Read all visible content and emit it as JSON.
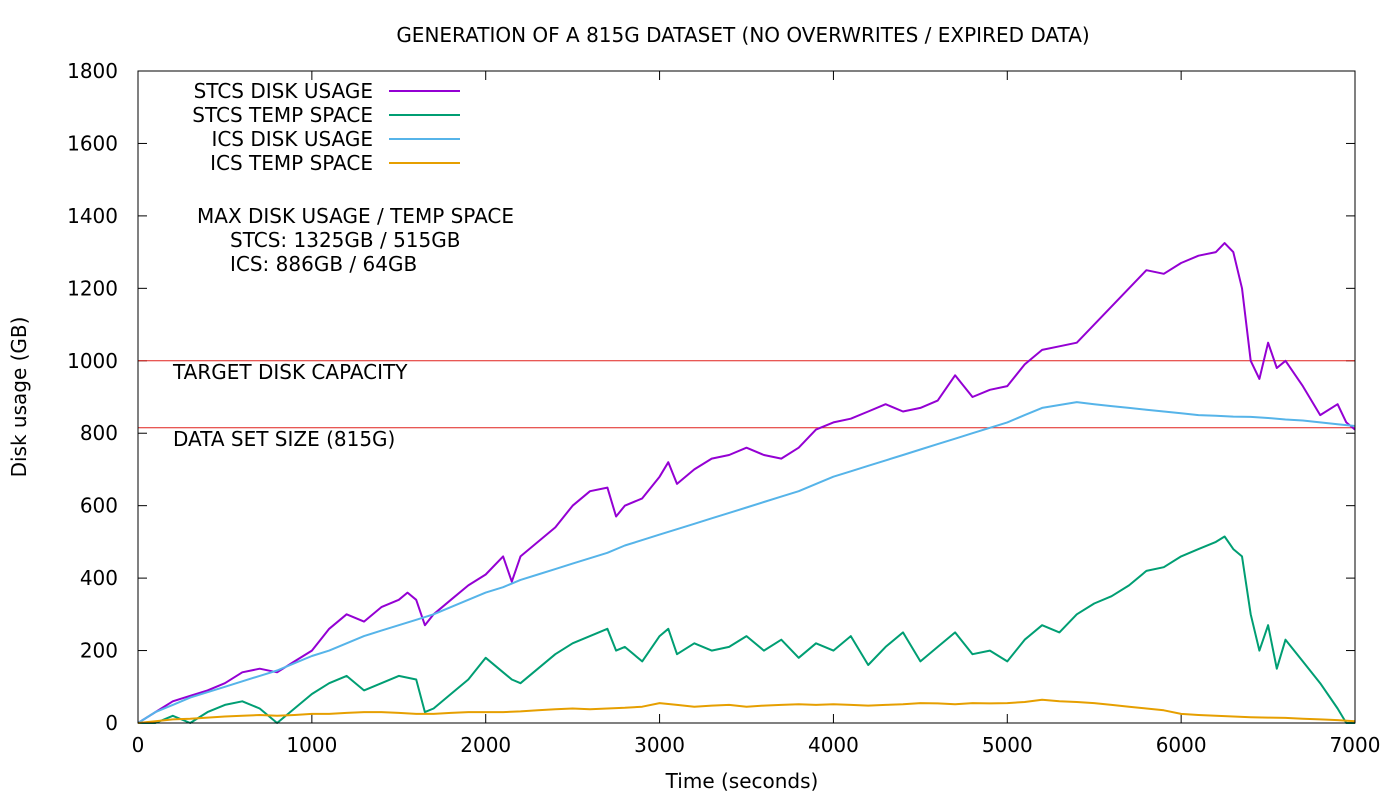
{
  "chart_data": {
    "type": "line",
    "title": "GENERATION OF A 815G DATASET (NO OVERWRITES / EXPIRED DATA)",
    "xlabel": "Time (seconds)",
    "ylabel": "Disk usage (GB)",
    "xlim": [
      0,
      7000
    ],
    "ylim": [
      0,
      1800
    ],
    "xticks": [
      "0",
      "1000",
      "2000",
      "3000",
      "4000",
      "5000",
      "6000",
      "7000"
    ],
    "yticks": [
      "0",
      "200",
      "400",
      "600",
      "800",
      "1000",
      "1200",
      "1400",
      "1600",
      "1800"
    ],
    "grid": false,
    "legend_position": "top-left",
    "reference_lines": [
      {
        "y": 1000,
        "label": "TARGET DISK CAPACITY",
        "color": "#e0201b"
      },
      {
        "y": 815,
        "label": "DATA SET SIZE (815G)",
        "color": "#e0201b"
      }
    ],
    "annotation": {
      "line1": "MAX DISK USAGE / TEMP SPACE",
      "line2": "STCS: 1325GB / 515GB",
      "line3": "ICS: 886GB / 64GB"
    },
    "series": [
      {
        "name": "STCS DISK USAGE",
        "color": "#9400d3",
        "x": [
          0,
          100,
          200,
          300,
          400,
          500,
          600,
          700,
          800,
          900,
          1000,
          1100,
          1200,
          1300,
          1400,
          1500,
          1550,
          1600,
          1650,
          1700,
          1800,
          1900,
          2000,
          2100,
          2150,
          2200,
          2300,
          2400,
          2500,
          2600,
          2700,
          2750,
          2800,
          2900,
          3000,
          3050,
          3100,
          3200,
          3300,
          3400,
          3500,
          3600,
          3700,
          3800,
          3900,
          4000,
          4100,
          4200,
          4300,
          4400,
          4500,
          4600,
          4700,
          4800,
          4900,
          5000,
          5100,
          5200,
          5300,
          5400,
          5500,
          5600,
          5700,
          5800,
          5900,
          6000,
          6100,
          6200,
          6250,
          6300,
          6350,
          6400,
          6450,
          6500,
          6550,
          6600,
          6700,
          6800,
          6900,
          6950,
          7000
        ],
        "y": [
          0,
          30,
          60,
          75,
          90,
          110,
          140,
          150,
          140,
          170,
          200,
          260,
          300,
          280,
          320,
          340,
          360,
          340,
          270,
          300,
          340,
          380,
          410,
          460,
          390,
          460,
          500,
          540,
          600,
          640,
          650,
          570,
          600,
          620,
          680,
          720,
          660,
          700,
          730,
          740,
          760,
          740,
          730,
          760,
          810,
          830,
          840,
          860,
          880,
          860,
          870,
          890,
          960,
          900,
          920,
          930,
          990,
          1030,
          1040,
          1050,
          1100,
          1150,
          1200,
          1250,
          1240,
          1270,
          1290,
          1300,
          1325,
          1300,
          1200,
          1000,
          950,
          1050,
          980,
          1000,
          930,
          850,
          880,
          830,
          810
        ]
      },
      {
        "name": "STCS TEMP SPACE",
        "color": "#009e73",
        "x": [
          0,
          100,
          200,
          300,
          400,
          500,
          600,
          700,
          800,
          900,
          1000,
          1100,
          1200,
          1300,
          1400,
          1500,
          1600,
          1650,
          1700,
          1800,
          1900,
          2000,
          2100,
          2150,
          2200,
          2300,
          2400,
          2500,
          2600,
          2700,
          2750,
          2800,
          2900,
          3000,
          3050,
          3100,
          3200,
          3300,
          3400,
          3500,
          3600,
          3700,
          3800,
          3900,
          4000,
          4100,
          4200,
          4300,
          4400,
          4500,
          4600,
          4700,
          4800,
          4900,
          5000,
          5100,
          5200,
          5300,
          5400,
          5500,
          5600,
          5700,
          5800,
          5900,
          6000,
          6100,
          6200,
          6250,
          6300,
          6350,
          6400,
          6450,
          6500,
          6550,
          6600,
          6700,
          6800,
          6900,
          6950,
          7000
        ],
        "y": [
          0,
          0,
          20,
          0,
          30,
          50,
          60,
          40,
          0,
          40,
          80,
          110,
          130,
          90,
          110,
          130,
          120,
          30,
          40,
          80,
          120,
          180,
          140,
          120,
          110,
          150,
          190,
          220,
          240,
          260,
          200,
          210,
          170,
          240,
          260,
          190,
          220,
          200,
          210,
          240,
          200,
          230,
          180,
          220,
          200,
          240,
          160,
          210,
          250,
          170,
          210,
          250,
          190,
          200,
          170,
          230,
          270,
          250,
          300,
          330,
          350,
          380,
          420,
          430,
          460,
          480,
          500,
          515,
          480,
          460,
          300,
          200,
          270,
          150,
          230,
          170,
          110,
          40,
          0,
          0
        ]
      },
      {
        "name": "ICS DISK USAGE",
        "color": "#56b4e9",
        "x": [
          0,
          100,
          200,
          300,
          400,
          500,
          600,
          700,
          800,
          900,
          1000,
          1100,
          1200,
          1300,
          1400,
          1500,
          1600,
          1700,
          1800,
          1900,
          2000,
          2100,
          2200,
          2300,
          2400,
          2500,
          2600,
          2700,
          2800,
          2900,
          3000,
          3100,
          3200,
          3300,
          3400,
          3500,
          3600,
          3700,
          3800,
          3900,
          4000,
          4100,
          4200,
          4300,
          4400,
          4500,
          4600,
          4700,
          4800,
          4900,
          5000,
          5100,
          5200,
          5300,
          5400,
          5500,
          5600,
          5700,
          5800,
          5900,
          6000,
          6100,
          6200,
          6300,
          6400,
          6500,
          6600,
          6700,
          6800,
          6900,
          7000
        ],
        "y": [
          0,
          30,
          50,
          70,
          85,
          100,
          115,
          130,
          145,
          165,
          185,
          200,
          220,
          240,
          255,
          270,
          285,
          300,
          320,
          340,
          360,
          375,
          395,
          410,
          425,
          440,
          455,
          470,
          490,
          505,
          520,
          535,
          550,
          565,
          580,
          595,
          610,
          625,
          640,
          660,
          680,
          695,
          710,
          725,
          740,
          755,
          770,
          785,
          800,
          815,
          830,
          850,
          870,
          878,
          886,
          880,
          875,
          870,
          865,
          860,
          855,
          850,
          848,
          846,
          845,
          842,
          838,
          835,
          830,
          825,
          820
        ]
      },
      {
        "name": "ICS TEMP SPACE",
        "color": "#e69f00",
        "x": [
          0,
          100,
          200,
          300,
          400,
          500,
          600,
          700,
          800,
          900,
          1000,
          1100,
          1200,
          1300,
          1400,
          1500,
          1600,
          1700,
          1800,
          1900,
          2000,
          2100,
          2200,
          2300,
          2400,
          2500,
          2600,
          2700,
          2800,
          2900,
          3000,
          3100,
          3200,
          3300,
          3400,
          3500,
          3600,
          3700,
          3800,
          3900,
          4000,
          4100,
          4200,
          4300,
          4400,
          4500,
          4600,
          4700,
          4800,
          4900,
          5000,
          5100,
          5200,
          5300,
          5400,
          5500,
          5600,
          5700,
          5800,
          5900,
          6000,
          6100,
          6200,
          6300,
          6400,
          6500,
          6600,
          6700,
          6800,
          6900,
          7000
        ],
        "y": [
          0,
          5,
          10,
          12,
          15,
          18,
          20,
          22,
          20,
          22,
          25,
          25,
          28,
          30,
          30,
          28,
          25,
          25,
          28,
          30,
          30,
          30,
          32,
          35,
          38,
          40,
          38,
          40,
          42,
          45,
          55,
          50,
          45,
          48,
          50,
          45,
          48,
          50,
          52,
          50,
          52,
          50,
          48,
          50,
          52,
          55,
          54,
          52,
          55,
          54,
          55,
          58,
          64,
          60,
          58,
          55,
          50,
          45,
          40,
          35,
          25,
          22,
          20,
          18,
          16,
          15,
          14,
          12,
          10,
          8,
          5
        ]
      }
    ]
  }
}
